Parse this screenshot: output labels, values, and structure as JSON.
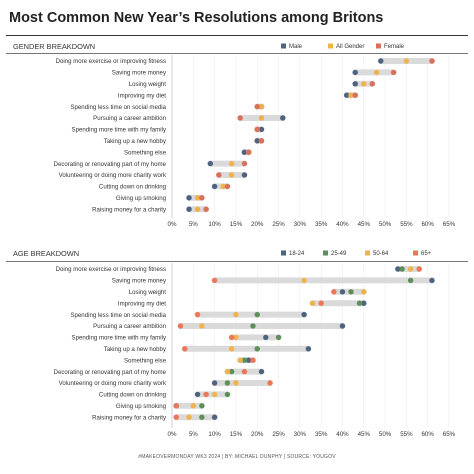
{
  "title": "Most Common New Year’s Resolutions among Britons",
  "footer": "#MAKEOVERMONDAY WK3 2024 | BY: MICHAEL DUNPHY | SOURCE: YOUGOV",
  "colors": {
    "Male": "#4d6380",
    "All Gender": "#efb24f",
    "Female": "#d9705a",
    "18-24": "#4d6380",
    "25-49": "#5e8e5a",
    "50-64": "#efb24f",
    "65+": "#ec7655",
    "range_bar": "#dadada"
  },
  "chart_data": [
    {
      "type": "dot-range",
      "section_title": "GENDER BREAKDOWN",
      "legend": [
        "Male",
        "All Gender",
        "Female"
      ],
      "xlim": [
        0,
        65
      ],
      "ticks": [
        "0%",
        "5%",
        "10%",
        "15%",
        "20%",
        "25%",
        "30%",
        "35%",
        "40%",
        "45%",
        "50%",
        "55%",
        "60%",
        "65%"
      ],
      "categories": [
        "Doing more exercise or improving fitness",
        "Saving more money",
        "Losing weight",
        "Improving my diet",
        "Spending less time on social media",
        "Pursuing a career ambition",
        "Spending more time with my family",
        "Taking up a new hobby",
        "Something else",
        "Decorating or renovating part of my home",
        "Volunteering or doing more charity work",
        "Cutting down on drinking",
        "Giving up smoking",
        "Raising money for a charity"
      ],
      "series": [
        {
          "name": "Male",
          "values": [
            49,
            43,
            43,
            41,
            21,
            26,
            21,
            20,
            17,
            9,
            17,
            10,
            4,
            4
          ]
        },
        {
          "name": "All Gender",
          "values": [
            55,
            48,
            45,
            42,
            21,
            21,
            20,
            21,
            18,
            14,
            14,
            12,
            6,
            6
          ]
        },
        {
          "name": "Female",
          "values": [
            61,
            52,
            47,
            43,
            20,
            16,
            20,
            21,
            18,
            17,
            11,
            13,
            7,
            8
          ]
        }
      ]
    },
    {
      "type": "dot-range",
      "section_title": "AGE BREAKDOWN",
      "legend": [
        "18-24",
        "25-49",
        "50-64",
        "65+"
      ],
      "xlim": [
        0,
        65
      ],
      "ticks": [
        "0%",
        "5%",
        "10%",
        "15%",
        "20%",
        "25%",
        "30%",
        "35%",
        "40%",
        "45%",
        "50%",
        "55%",
        "60%",
        "65%"
      ],
      "categories": [
        "Doing more exercise or improving fitness",
        "Saving more money",
        "Losing weight",
        "Improving my diet",
        "Spending less time on social media",
        "Pursuing a career ambition",
        "Spending more time with my family",
        "Taking up a new hobby",
        "Something else",
        "Decorating or renovating part of my home",
        "Volunteering or doing more charity work",
        "Cutting down on drinking",
        "Giving up smoking",
        "Raising money for a charity"
      ],
      "series": [
        {
          "name": "18-24",
          "values": [
            53,
            61,
            40,
            45,
            31,
            40,
            22,
            32,
            18,
            21,
            10,
            6,
            1,
            10
          ]
        },
        {
          "name": "25-49",
          "values": [
            54,
            56,
            42,
            44,
            20,
            19,
            25,
            20,
            17,
            14,
            13,
            13,
            7,
            7
          ]
        },
        {
          "name": "50-64",
          "values": [
            56,
            31,
            45,
            33,
            15,
            7,
            15,
            14,
            16,
            13,
            15,
            10,
            5,
            4
          ]
        },
        {
          "name": "65+",
          "values": [
            58,
            10,
            38,
            35,
            6,
            2,
            14,
            3,
            19,
            17,
            23,
            8,
            1,
            1
          ]
        }
      ]
    }
  ]
}
